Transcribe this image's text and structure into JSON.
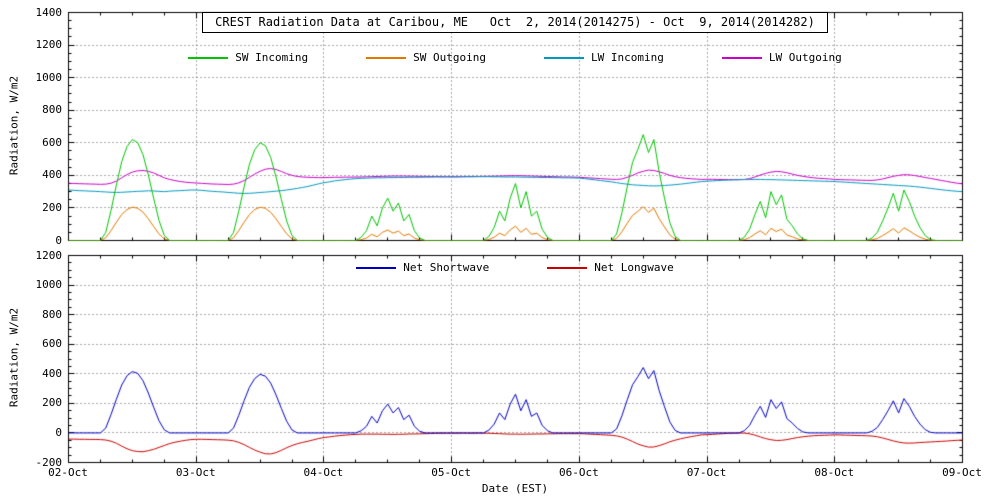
{
  "title": "CREST Radiation Data at Caribou, ME   Oct  2, 2014(2014275) - Oct  9, 2014(2014282)",
  "chart_data": [
    {
      "type": "line",
      "panel": "top",
      "ylabel": "Radiation, W/m2",
      "ylim": [
        0,
        1400
      ],
      "yticks": [
        0,
        200,
        400,
        600,
        800,
        1000,
        1200,
        1400
      ],
      "y_minor_step": 50,
      "grid": "dotted",
      "legend_position": "top-center",
      "x_step_hours": 1,
      "xlim": [
        0,
        168
      ],
      "series": [
        {
          "name": "SW Incoming",
          "color": "#00c400",
          "values": [
            0,
            0,
            0,
            0,
            0,
            0,
            0,
            50,
            186,
            341,
            484,
            577,
            620,
            601,
            527,
            403,
            260,
            124,
            31,
            0,
            0,
            0,
            0,
            0,
            0,
            0,
            0,
            0,
            0,
            0,
            0,
            48,
            180,
            330,
            468,
            558,
            600,
            582,
            510,
            390,
            252,
            120,
            30,
            0,
            0,
            0,
            0,
            0,
            0,
            0,
            0,
            0,
            0,
            0,
            0,
            20,
            60,
            150,
            90,
            200,
            260,
            180,
            230,
            120,
            160,
            60,
            15,
            0,
            0,
            0,
            0,
            0,
            0,
            0,
            0,
            0,
            0,
            0,
            0,
            25,
            80,
            180,
            120,
            260,
            350,
            200,
            300,
            150,
            180,
            70,
            20,
            0,
            0,
            0,
            0,
            0,
            0,
            0,
            0,
            0,
            0,
            0,
            0,
            40,
            170,
            330,
            480,
            560,
            650,
            540,
            620,
            420,
            260,
            110,
            25,
            0,
            0,
            0,
            0,
            0,
            0,
            0,
            0,
            0,
            0,
            0,
            0,
            20,
            70,
            160,
            240,
            140,
            300,
            220,
            280,
            130,
            90,
            40,
            10,
            0,
            0,
            0,
            0,
            0,
            0,
            0,
            0,
            0,
            0,
            0,
            0,
            15,
            50,
            120,
            200,
            290,
            180,
            310,
            240,
            150,
            80,
            30,
            5,
            0,
            0,
            0,
            0,
            0,
            0
          ]
        },
        {
          "name": "SW Outgoing",
          "color": "#e07800",
          "values": [
            0,
            0,
            0,
            0,
            0,
            0,
            0,
            17,
            61,
            113,
            160,
            190,
            205,
            198,
            174,
            133,
            86,
            41,
            10,
            0,
            0,
            0,
            0,
            0,
            0,
            0,
            0,
            0,
            0,
            0,
            0,
            16,
            61,
            112,
            159,
            190,
            204,
            198,
            173,
            133,
            86,
            41,
            10,
            0,
            0,
            0,
            0,
            0,
            0,
            0,
            0,
            0,
            0,
            0,
            0,
            5,
            15,
            38,
            23,
            50,
            65,
            45,
            58,
            30,
            40,
            15,
            4,
            0,
            0,
            0,
            0,
            0,
            0,
            0,
            0,
            0,
            0,
            0,
            0,
            6,
            20,
            45,
            30,
            65,
            88,
            50,
            75,
            38,
            45,
            18,
            5,
            0,
            0,
            0,
            0,
            0,
            0,
            0,
            0,
            0,
            0,
            0,
            0,
            13,
            54,
            106,
            154,
            179,
            208,
            173,
            198,
            134,
            83,
            35,
            8,
            0,
            0,
            0,
            0,
            0,
            0,
            0,
            0,
            0,
            0,
            0,
            0,
            5,
            18,
            40,
            60,
            35,
            75,
            55,
            70,
            33,
            23,
            10,
            3,
            0,
            0,
            0,
            0,
            0,
            0,
            0,
            0,
            0,
            0,
            0,
            0,
            4,
            13,
            30,
            50,
            73,
            45,
            78,
            60,
            38,
            20,
            8,
            1,
            0,
            0,
            0,
            0,
            0,
            0
          ]
        },
        {
          "name": "LW Incoming",
          "color": "#0098be",
          "values": [
            310,
            308,
            306,
            305,
            303,
            302,
            300,
            298,
            296,
            295,
            296,
            298,
            300,
            302,
            303,
            305,
            304,
            302,
            300,
            303,
            305,
            306,
            308,
            310,
            310,
            308,
            305,
            302,
            300,
            298,
            295,
            293,
            290,
            289,
            290,
            292,
            295,
            297,
            300,
            303,
            306,
            310,
            315,
            320,
            326,
            332,
            340,
            348,
            355,
            360,
            366,
            370,
            374,
            377,
            380,
            382,
            383,
            384,
            385,
            385,
            386,
            386,
            387,
            387,
            388,
            388,
            388,
            389,
            389,
            390,
            390,
            390,
            390,
            390,
            391,
            391,
            391,
            392,
            392,
            392,
            391,
            391,
            390,
            390,
            390,
            389,
            389,
            388,
            388,
            387,
            387,
            386,
            386,
            385,
            385,
            384,
            383,
            380,
            376,
            372,
            368,
            364,
            360,
            355,
            350,
            346,
            342,
            340,
            338,
            336,
            335,
            336,
            338,
            340,
            343,
            346,
            350,
            354,
            358,
            362,
            364,
            366,
            368,
            370,
            371,
            372,
            373,
            374,
            374,
            375,
            375,
            374,
            374,
            373,
            372,
            371,
            370,
            369,
            368,
            367,
            366,
            365,
            364,
            363,
            362,
            360,
            358,
            356,
            354,
            352,
            350,
            348,
            346,
            344,
            342,
            340,
            338,
            336,
            334,
            331,
            328,
            324,
            320,
            316,
            312,
            308,
            305,
            302,
            300
          ]
        },
        {
          "name": "LW Outgoing",
          "color": "#c800c8",
          "values": [
            352,
            350,
            349,
            348,
            347,
            346,
            345,
            346,
            352,
            365,
            385,
            405,
            420,
            428,
            430,
            425,
            415,
            400,
            385,
            375,
            368,
            362,
            358,
            355,
            353,
            351,
            349,
            347,
            346,
            345,
            344,
            346,
            354,
            368,
            388,
            408,
            425,
            438,
            442,
            436,
            424,
            410,
            400,
            393,
            390,
            388,
            387,
            386,
            386,
            387,
            388,
            388,
            389,
            389,
            390,
            390,
            391,
            392,
            393,
            394,
            395,
            396,
            396,
            396,
            395,
            395,
            394,
            394,
            393,
            393,
            392,
            392,
            392,
            392,
            392,
            393,
            393,
            393,
            394,
            394,
            395,
            396,
            397,
            398,
            398,
            398,
            397,
            396,
            395,
            394,
            393,
            392,
            391,
            390,
            390,
            389,
            388,
            386,
            384,
            382,
            380,
            378,
            376,
            375,
            378,
            388,
            400,
            415,
            425,
            432,
            430,
            422,
            412,
            400,
            392,
            386,
            382,
            379,
            377,
            375,
            376,
            376,
            375,
            375,
            374,
            374,
            374,
            375,
            380,
            390,
            402,
            412,
            420,
            424,
            422,
            416,
            408,
            400,
            394,
            389,
            385,
            382,
            380,
            378,
            375,
            374,
            373,
            372,
            371,
            370,
            369,
            369,
            372,
            378,
            386,
            394,
            400,
            404,
            403,
            399,
            393,
            387,
            381,
            375,
            369,
            363,
            357,
            352,
            348
          ]
        }
      ]
    },
    {
      "type": "line",
      "panel": "bottom",
      "ylabel": "Radiation, W/m2",
      "xlabel": "Date (EST)",
      "ylim": [
        -200,
        1200
      ],
      "yticks": [
        -200,
        0,
        200,
        400,
        600,
        800,
        1000,
        1200
      ],
      "y_minor_step": 50,
      "grid": "dotted",
      "legend_position": "top-center",
      "x_step_hours": 1,
      "xlim": [
        0,
        168
      ],
      "xticks_hours": [
        0,
        24,
        48,
        72,
        96,
        120,
        144,
        168
      ],
      "xtick_labels": [
        "02-Oct",
        "03-Oct",
        "04-Oct",
        "05-Oct",
        "06-Oct",
        "07-Oct",
        "08-Oct",
        "09-Oct"
      ],
      "x_minor_step_hours": 6,
      "series": [
        {
          "name": "Net Shortwave",
          "color": "#0000c3",
          "values": [
            0,
            0,
            0,
            0,
            0,
            0,
            0,
            33,
            125,
            228,
            324,
            387,
            415,
            403,
            353,
            270,
            174,
            83,
            21,
            0,
            0,
            0,
            0,
            0,
            0,
            0,
            0,
            0,
            0,
            0,
            0,
            32,
            119,
            218,
            309,
            368,
            396,
            384,
            337,
            257,
            166,
            79,
            20,
            0,
            0,
            0,
            0,
            0,
            0,
            0,
            0,
            0,
            0,
            0,
            0,
            15,
            45,
            112,
            67,
            150,
            195,
            135,
            172,
            90,
            120,
            45,
            11,
            0,
            0,
            0,
            0,
            0,
            0,
            0,
            0,
            0,
            0,
            0,
            0,
            19,
            60,
            135,
            90,
            195,
            262,
            150,
            225,
            112,
            135,
            52,
            15,
            0,
            0,
            0,
            0,
            0,
            0,
            0,
            0,
            0,
            0,
            0,
            0,
            27,
            116,
            224,
            326,
            381,
            442,
            367,
            422,
            286,
            177,
            75,
            17,
            0,
            0,
            0,
            0,
            0,
            0,
            0,
            0,
            0,
            0,
            0,
            0,
            15,
            52,
            120,
            180,
            105,
            225,
            165,
            210,
            97,
            67,
            30,
            7,
            0,
            0,
            0,
            0,
            0,
            0,
            0,
            0,
            0,
            0,
            0,
            0,
            11,
            37,
            90,
            150,
            217,
            135,
            232,
            180,
            112,
            60,
            22,
            4,
            0,
            0,
            0,
            0,
            0,
            0
          ]
        },
        {
          "name": "Net Longwave",
          "color": "#c80000",
          "values": [
            -42,
            -42,
            -43,
            -43,
            -44,
            -44,
            -45,
            -48,
            -56,
            -70,
            -89,
            -107,
            -120,
            -126,
            -127,
            -120,
            -111,
            -98,
            -85,
            -72,
            -63,
            -56,
            -50,
            -45,
            -43,
            -43,
            -44,
            -45,
            -46,
            -47,
            -49,
            -53,
            -64,
            -79,
            -98,
            -116,
            -130,
            -141,
            -142,
            -133,
            -118,
            -100,
            -85,
            -73,
            -64,
            -56,
            -47,
            -38,
            -31,
            -27,
            -22,
            -18,
            -15,
            -12,
            -10,
            -8,
            -8,
            -8,
            -8,
            -9,
            -9,
            -10,
            -9,
            -9,
            -7,
            -7,
            -6,
            -5,
            -4,
            -3,
            -2,
            -2,
            -2,
            -2,
            -1,
            -2,
            -2,
            -1,
            -2,
            -2,
            -4,
            -5,
            -7,
            -8,
            -8,
            -9,
            -8,
            -8,
            -7,
            -7,
            -6,
            -6,
            -5,
            -5,
            -5,
            -5,
            -5,
            -6,
            -8,
            -10,
            -12,
            -14,
            -16,
            -20,
            -28,
            -42,
            -58,
            -75,
            -87,
            -96,
            -95,
            -86,
            -74,
            -60,
            -49,
            -40,
            -32,
            -25,
            -19,
            -13,
            -12,
            -10,
            -7,
            -5,
            -3,
            -2,
            -1,
            -1,
            -6,
            -15,
            -27,
            -38,
            -46,
            -51,
            -50,
            -45,
            -38,
            -31,
            -26,
            -22,
            -19,
            -17,
            -16,
            -15,
            -13,
            -14,
            -15,
            -16,
            -17,
            -18,
            -19,
            -21,
            -26,
            -34,
            -44,
            -54,
            -62,
            -68,
            -69,
            -68,
            -65,
            -63,
            -61,
            -59,
            -57,
            -55,
            -52,
            -50,
            -48
          ]
        }
      ]
    }
  ]
}
